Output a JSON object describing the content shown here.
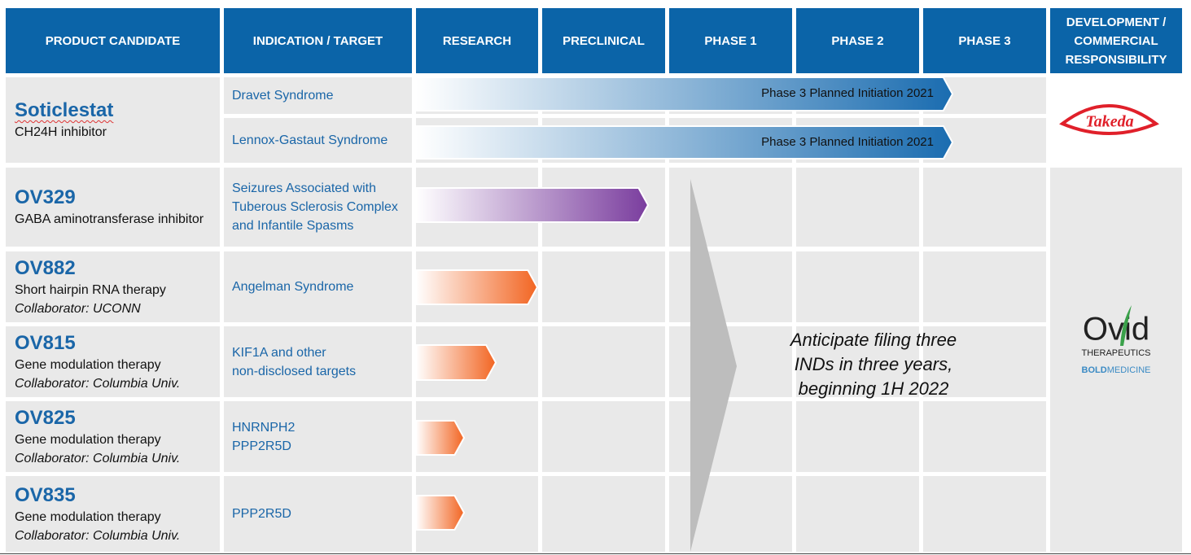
{
  "header": {
    "columns": [
      "PRODUCT CANDIDATE",
      "INDICATION / TARGET",
      "RESEARCH",
      "PRECLINICAL",
      "PHASE 1",
      "PHASE 2",
      "PHASE 3",
      "DEVELOPMENT / COMMERCIAL RESPONSIBILITY"
    ]
  },
  "products": [
    {
      "name": "Soticlestat",
      "description": "CH24H inhibitor",
      "indications": [
        [
          "Dravet Syndrome"
        ],
        [
          "Lennox-Gastaut Syndrome"
        ]
      ],
      "bar_labels": [
        "Phase 3 Planned Initiation 2021",
        "Phase 3 Planned Initiation 2021"
      ]
    },
    {
      "name": "OV329",
      "description": "GABA aminotransferase inhibitor",
      "indications": [
        [
          "Seizures Associated with Tuberous Sclerosis Complex and Infantile Spasms"
        ]
      ]
    },
    {
      "name": "OV882",
      "description": "Short hairpin RNA therapy",
      "collaborator": "Collaborator: UCONN",
      "indications": [
        [
          "Angelman Syndrome"
        ]
      ]
    },
    {
      "name": "OV815",
      "description": "Gene modulation therapy",
      "collaborator": "Collaborator: Columbia Univ.",
      "indications": [
        [
          "KIF1A and other",
          "non-disclosed targets"
        ]
      ]
    },
    {
      "name": "OV825",
      "description": "Gene modulation therapy",
      "collaborator": "Collaborator: Columbia Univ.",
      "indications": [
        [
          "HNRNPH2",
          "PPP2R5D"
        ]
      ]
    },
    {
      "name": "OV835",
      "description": "Gene modulation therapy",
      "collaborator": "Collaborator: Columbia Univ.",
      "indications": [
        [
          "PPP2R5D"
        ]
      ]
    }
  ],
  "annotation": [
    "Anticipate filing three",
    "INDs in three years,",
    "beginning 1H 2022"
  ],
  "logos": {
    "takeda": "Takeda",
    "ovid": {
      "name": "Ovid",
      "tagline": "THERAPEUTICS",
      "slogan_bold": "BOLD",
      "slogan": "MEDICINE"
    }
  }
}
